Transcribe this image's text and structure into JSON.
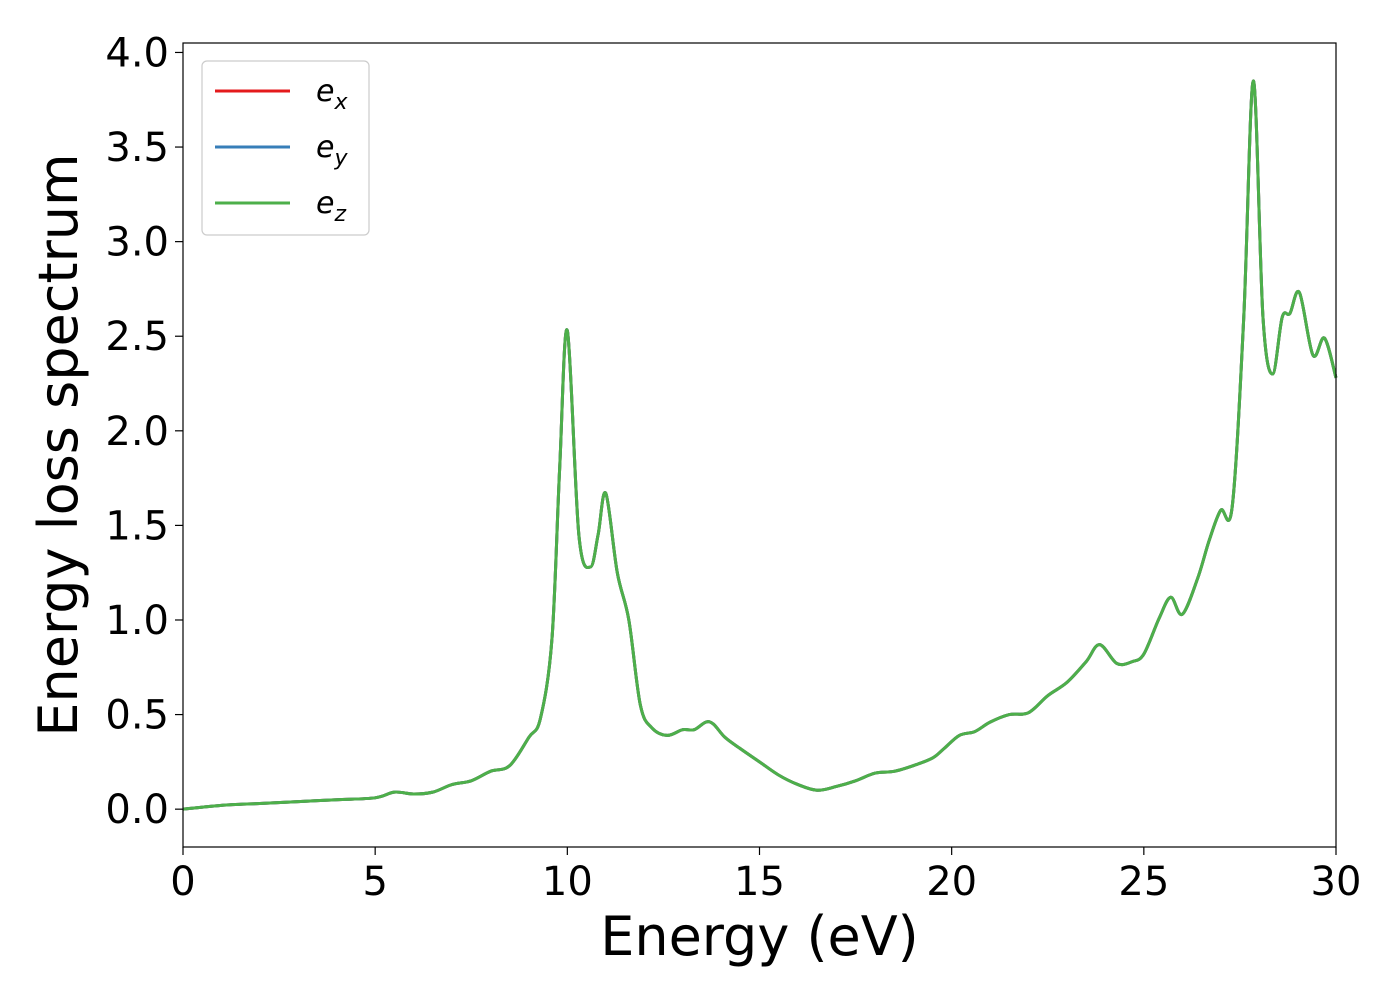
{
  "chart_data": {
    "type": "line",
    "xlabel": "Energy (eV)",
    "ylabel": "Energy loss spectrum",
    "xlim": [
      0,
      30
    ],
    "ylim": [
      -0.2,
      4.05
    ],
    "xticks": [
      0,
      5,
      10,
      15,
      20,
      25,
      30
    ],
    "yticks": [
      0.0,
      0.5,
      1.0,
      1.5,
      2.0,
      2.5,
      3.0,
      3.5,
      4.0
    ],
    "xtick_labels": [
      "0",
      "5",
      "10",
      "15",
      "20",
      "25",
      "30"
    ],
    "ytick_labels": [
      "0.0",
      "0.5",
      "1.0",
      "1.5",
      "2.0",
      "2.5",
      "3.0",
      "3.5",
      "4.0"
    ],
    "grid": false,
    "legend_position": "top-left",
    "x": [
      0,
      1,
      2,
      3,
      4,
      5,
      5.5,
      6,
      6.5,
      7,
      7.5,
      8,
      8.5,
      9,
      9.3,
      9.6,
      9.8,
      10,
      10.3,
      10.6,
      10.8,
      11,
      11.3,
      11.6,
      11.9,
      12.2,
      12.6,
      13,
      13.3,
      13.6,
      13.8,
      14.1,
      14.5,
      15,
      15.5,
      16,
      16.5,
      17,
      17.5,
      18,
      18.5,
      19,
      19.5,
      19.8,
      20.2,
      20.6,
      21,
      21.5,
      22,
      22.5,
      23,
      23.5,
      23.85,
      24.3,
      24.7,
      25,
      25.4,
      25.7,
      26,
      26.4,
      26.7,
      27,
      27.3,
      27.6,
      27.85,
      28.1,
      28.35,
      28.6,
      28.8,
      29.05,
      29.4,
      29.7,
      30
    ],
    "series": [
      {
        "name": "e",
        "sub": "x",
        "color": "#e41a1c",
        "values": [
          0.0,
          0.02,
          0.03,
          0.04,
          0.05,
          0.06,
          0.09,
          0.08,
          0.09,
          0.13,
          0.15,
          0.2,
          0.23,
          0.38,
          0.48,
          0.9,
          1.8,
          2.53,
          1.45,
          1.28,
          1.45,
          1.67,
          1.25,
          1.0,
          0.55,
          0.43,
          0.39,
          0.42,
          0.42,
          0.46,
          0.45,
          0.38,
          0.32,
          0.25,
          0.18,
          0.13,
          0.1,
          0.12,
          0.15,
          0.19,
          0.2,
          0.23,
          0.27,
          0.32,
          0.39,
          0.41,
          0.46,
          0.5,
          0.51,
          0.6,
          0.67,
          0.78,
          0.87,
          0.77,
          0.78,
          0.82,
          1.01,
          1.12,
          1.03,
          1.22,
          1.42,
          1.58,
          1.6,
          2.6,
          3.85,
          2.6,
          2.3,
          2.6,
          2.62,
          2.73,
          2.4,
          2.49,
          2.28
        ]
      },
      {
        "name": "e",
        "sub": "y",
        "color": "#377eb8",
        "values": [
          0.0,
          0.02,
          0.03,
          0.04,
          0.05,
          0.06,
          0.09,
          0.08,
          0.09,
          0.13,
          0.15,
          0.2,
          0.23,
          0.38,
          0.48,
          0.9,
          1.8,
          2.53,
          1.45,
          1.28,
          1.45,
          1.67,
          1.25,
          1.0,
          0.55,
          0.43,
          0.39,
          0.42,
          0.42,
          0.46,
          0.45,
          0.38,
          0.32,
          0.25,
          0.18,
          0.13,
          0.1,
          0.12,
          0.15,
          0.19,
          0.2,
          0.23,
          0.27,
          0.32,
          0.39,
          0.41,
          0.46,
          0.5,
          0.51,
          0.6,
          0.67,
          0.78,
          0.87,
          0.77,
          0.78,
          0.82,
          1.01,
          1.12,
          1.03,
          1.22,
          1.42,
          1.58,
          1.6,
          2.6,
          3.85,
          2.6,
          2.3,
          2.6,
          2.62,
          2.73,
          2.4,
          2.49,
          2.28
        ]
      },
      {
        "name": "e",
        "sub": "z",
        "color": "#4daf4a",
        "values": [
          0.0,
          0.02,
          0.03,
          0.04,
          0.05,
          0.06,
          0.09,
          0.08,
          0.09,
          0.13,
          0.15,
          0.2,
          0.23,
          0.38,
          0.48,
          0.9,
          1.8,
          2.53,
          1.45,
          1.28,
          1.45,
          1.67,
          1.25,
          1.0,
          0.55,
          0.43,
          0.39,
          0.42,
          0.42,
          0.46,
          0.45,
          0.38,
          0.32,
          0.25,
          0.18,
          0.13,
          0.1,
          0.12,
          0.15,
          0.19,
          0.2,
          0.23,
          0.27,
          0.32,
          0.39,
          0.41,
          0.46,
          0.5,
          0.51,
          0.6,
          0.67,
          0.78,
          0.87,
          0.77,
          0.78,
          0.82,
          1.01,
          1.12,
          1.03,
          1.22,
          1.42,
          1.58,
          1.6,
          2.6,
          3.85,
          2.6,
          2.3,
          2.6,
          2.62,
          2.73,
          2.4,
          2.49,
          2.28
        ]
      }
    ]
  }
}
